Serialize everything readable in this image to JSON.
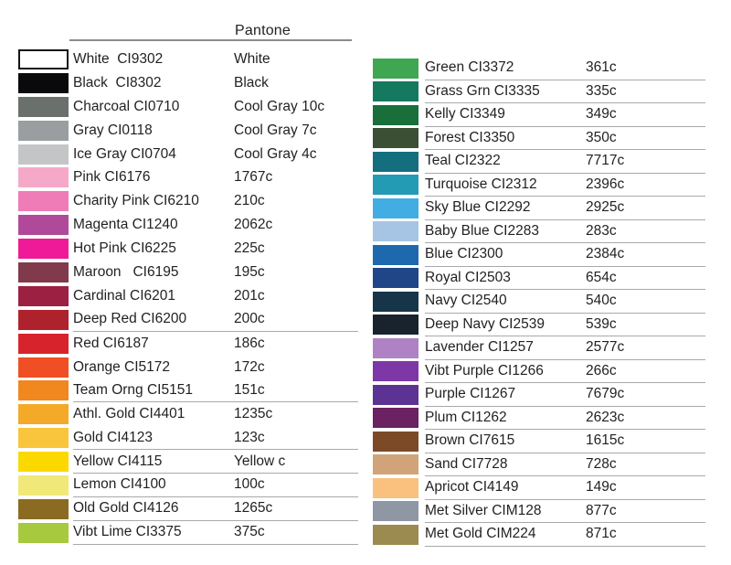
{
  "header": {
    "pantone_label": "Pantone"
  },
  "left_column": {
    "rows": [
      {
        "label": "White  CI9302",
        "pantone": "White",
        "color": "#ffffff",
        "border": true,
        "underline": false
      },
      {
        "label": "Black  CI8302",
        "pantone": "Black",
        "color": "#0a0a0c",
        "underline": false
      },
      {
        "label": "Charcoal CI0710",
        "pantone": "Cool Gray 10c",
        "color": "#6a706c",
        "underline": false
      },
      {
        "label": "Gray CI0118",
        "pantone": "Cool Gray 7c",
        "color": "#9b9ea0",
        "underline": false
      },
      {
        "label": "Ice Gray CI0704",
        "pantone": "Cool Gray 4c",
        "color": "#c3c5c7",
        "underline": false
      },
      {
        "label": "Pink CI6176",
        "pantone": "1767c",
        "color": "#f6a8c9",
        "underline": false
      },
      {
        "label": "Charity Pink CI6210",
        "pantone": "210c",
        "color": "#ef7cb6",
        "underline": false
      },
      {
        "label": "Magenta CI1240",
        "pantone": "2062c",
        "color": "#b1499a",
        "underline": false
      },
      {
        "label": "Hot Pink CI6225",
        "pantone": "225c",
        "color": "#ee1a97",
        "underline": false
      },
      {
        "label": "Maroon   CI6195",
        "pantone": "195c",
        "color": "#803a4b",
        "underline": false
      },
      {
        "label": "Cardinal CI6201",
        "pantone": "201c",
        "color": "#9b2041",
        "underline": false
      },
      {
        "label": "Deep Red CI6200",
        "pantone": "200c",
        "color": "#ae222e",
        "underline": true
      },
      {
        "label": "Red CI6187",
        "pantone": "186c",
        "color": "#d7232b",
        "underline": false
      },
      {
        "label": "Orange CI5172",
        "pantone": "172c",
        "color": "#f04e24",
        "underline": false
      },
      {
        "label": "Team Orng CI5151",
        "pantone": "151c",
        "color": "#f1871f",
        "underline": true
      },
      {
        "label": "Athl. Gold CI4401",
        "pantone": "1235c",
        "color": "#f5a928",
        "underline": false
      },
      {
        "label": "Gold CI4123",
        "pantone": "123c",
        "color": "#f9c53d",
        "underline": true
      },
      {
        "label": "Yellow CI4115",
        "pantone": "Yellow c",
        "color": "#fbd900",
        "underline": true
      },
      {
        "label": "Lemon CI4100",
        "pantone": "100c",
        "color": "#f0e878",
        "underline": true
      },
      {
        "label": "Old Gold CI4126",
        "pantone": "1265c",
        "color": "#8a6b21",
        "underline": true
      },
      {
        "label": "Vibt Lime CI3375",
        "pantone": "375c",
        "color": "#a6c93e",
        "underline": true
      }
    ]
  },
  "right_column": {
    "rows": [
      {
        "label": "Green CI3372",
        "pantone": "361c",
        "color": "#3fa651",
        "underline": true
      },
      {
        "label": "Grass Grn CI3335",
        "pantone": "335c",
        "color": "#14795f",
        "underline": true
      },
      {
        "label": "Kelly CI3349",
        "pantone": "349c",
        "color": "#186f3a",
        "underline": true
      },
      {
        "label": "Forest CI3350",
        "pantone": "350c",
        "color": "#3a4f33",
        "underline": true
      },
      {
        "label": "Teal CI2322",
        "pantone": "7717c",
        "color": "#136f7e",
        "underline": true
      },
      {
        "label": "Turquoise CI2312",
        "pantone": "2396c",
        "color": "#239bb5",
        "underline": true
      },
      {
        "label": "Sky Blue CI2292",
        "pantone": "2925c",
        "color": "#41ade2",
        "underline": true
      },
      {
        "label": "Baby Blue CI2283",
        "pantone": "283c",
        "color": "#a6c4e4",
        "underline": true
      },
      {
        "label": "Blue CI2300",
        "pantone": "2384c",
        "color": "#1e68ae",
        "underline": true
      },
      {
        "label": "Royal CI2503",
        "pantone": "654c",
        "color": "#214687",
        "underline": true
      },
      {
        "label": "Navy CI2540",
        "pantone": "540c",
        "color": "#163549",
        "underline": true
      },
      {
        "label": "Deep Navy CI2539",
        "pantone": "539c",
        "color": "#19232e",
        "underline": true
      },
      {
        "label": "Lavender CI1257",
        "pantone": "2577c",
        "color": "#ae82c5",
        "underline": true
      },
      {
        "label": "Vibt Purple CI1266",
        "pantone": "266c",
        "color": "#7d37a6",
        "underline": true
      },
      {
        "label": "Purple CI1267",
        "pantone": "7679c",
        "color": "#5c3394",
        "underline": true
      },
      {
        "label": "Plum CI1262",
        "pantone": "2623c",
        "color": "#6b2162",
        "underline": true
      },
      {
        "label": "Brown CI7615",
        "pantone": "1615c",
        "color": "#7d4a28",
        "underline": true
      },
      {
        "label": "Sand CI7728",
        "pantone": "728c",
        "color": "#d0a478",
        "underline": true
      },
      {
        "label": "Apricot CI4149",
        "pantone": "149c",
        "color": "#fac17e",
        "underline": true
      },
      {
        "label": "Met Silver CIM128",
        "pantone": "877c",
        "color": "#8e97a3",
        "underline": true
      },
      {
        "label": "Met Gold CIM224",
        "pantone": "871c",
        "color": "#9c8b50",
        "underline": true
      }
    ]
  }
}
